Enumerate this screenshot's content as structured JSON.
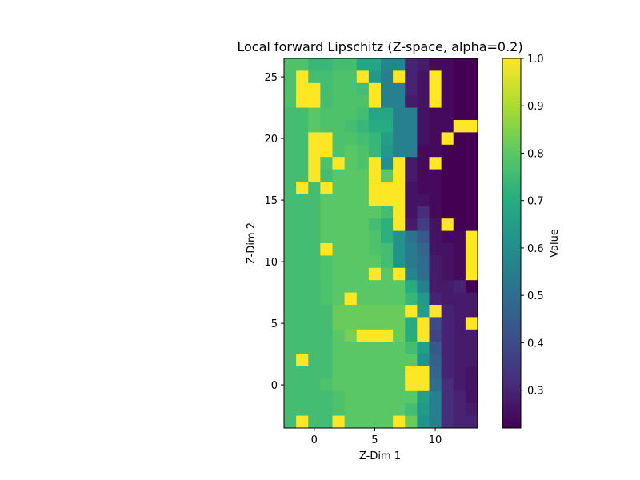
{
  "chart_data": {
    "type": "heatmap",
    "title": "Local forward Lipschitz (Z-space, alpha=0.2)",
    "xlabel": "Z-Dim 1",
    "ylabel": "Z-Dim 2",
    "colorbar_label": "Value",
    "colormap": "viridis",
    "x_start": -2,
    "x_end": 13,
    "y_start": -3,
    "y_end": 26,
    "xlim": [
      -2.5,
      13.5
    ],
    "ylim": [
      -3.5,
      26.5
    ],
    "x_ticks": [
      0,
      5,
      10
    ],
    "y_ticks": [
      0,
      5,
      10,
      15,
      20,
      25
    ],
    "clim": [
      0.22,
      1.0
    ],
    "colorbar_ticks": [
      0.3,
      0.4,
      0.5,
      0.6,
      0.7,
      0.8,
      0.9,
      1.0
    ],
    "colorbar_tick_labels": [
      "0.3",
      "0.4",
      "0.5",
      "0.6",
      "0.7",
      "0.8",
      "0.9",
      "1.0"
    ],
    "rows": [
      [
        0.78,
        0.78,
        0.74,
        0.74,
        0.76,
        0.76,
        0.68,
        0.68,
        0.58,
        0.58,
        0.3,
        0.28,
        0.24,
        0.24,
        0.22,
        0.22
      ],
      [
        0.78,
        1.0,
        0.76,
        0.76,
        0.78,
        0.78,
        1.0,
        0.64,
        0.56,
        1.0,
        0.3,
        0.26,
        1.0,
        0.24,
        0.22,
        0.22
      ],
      [
        0.78,
        1.0,
        1.0,
        0.76,
        0.78,
        0.78,
        0.76,
        1.0,
        0.56,
        0.56,
        0.3,
        0.26,
        1.0,
        0.24,
        0.22,
        0.22
      ],
      [
        0.78,
        1.0,
        1.0,
        0.76,
        0.78,
        0.78,
        0.78,
        1.0,
        0.56,
        0.56,
        0.28,
        0.26,
        1.0,
        0.24,
        0.22,
        0.22
      ],
      [
        0.76,
        0.76,
        0.8,
        0.78,
        0.78,
        0.78,
        0.76,
        0.68,
        0.68,
        0.56,
        0.56,
        0.26,
        0.24,
        0.24,
        0.22,
        0.22
      ],
      [
        0.76,
        0.76,
        0.8,
        0.78,
        0.78,
        0.76,
        0.74,
        0.7,
        0.7,
        0.56,
        0.56,
        0.26,
        0.24,
        0.24,
        1.0,
        1.0
      ],
      [
        0.76,
        0.76,
        1.0,
        1.0,
        0.78,
        0.78,
        0.76,
        0.74,
        0.66,
        0.56,
        0.56,
        0.26,
        0.24,
        1.0,
        0.22,
        0.22
      ],
      [
        0.76,
        0.76,
        1.0,
        1.0,
        0.78,
        0.8,
        0.78,
        0.74,
        0.64,
        0.56,
        0.56,
        0.24,
        0.24,
        0.22,
        0.22,
        0.22
      ],
      [
        0.76,
        0.76,
        1.0,
        0.78,
        1.0,
        0.8,
        0.78,
        1.0,
        0.62,
        1.0,
        0.28,
        0.24,
        1.0,
        0.22,
        0.22,
        0.22
      ],
      [
        0.76,
        0.76,
        1.0,
        0.76,
        0.8,
        0.8,
        0.8,
        1.0,
        0.8,
        1.0,
        0.28,
        0.24,
        0.24,
        0.22,
        0.22,
        0.22
      ],
      [
        0.76,
        1.0,
        0.76,
        1.0,
        0.8,
        0.8,
        0.8,
        1.0,
        1.0,
        1.0,
        0.26,
        0.24,
        0.24,
        0.22,
        0.22,
        0.22
      ],
      [
        0.76,
        0.76,
        0.76,
        0.8,
        0.8,
        0.8,
        0.8,
        1.0,
        1.0,
        1.0,
        0.26,
        0.26,
        0.24,
        0.22,
        0.22,
        0.22
      ],
      [
        0.76,
        0.76,
        0.76,
        0.8,
        0.8,
        0.8,
        0.8,
        0.8,
        0.76,
        1.0,
        0.26,
        0.32,
        0.24,
        0.22,
        0.22,
        0.22
      ],
      [
        0.76,
        0.76,
        0.76,
        0.8,
        0.8,
        0.8,
        0.8,
        0.76,
        0.72,
        1.0,
        0.28,
        0.36,
        0.26,
        1.0,
        0.22,
        0.22
      ],
      [
        0.76,
        0.76,
        0.76,
        0.8,
        0.8,
        0.8,
        0.8,
        0.78,
        0.72,
        0.62,
        0.52,
        0.44,
        0.26,
        0.24,
        0.24,
        1.0
      ],
      [
        0.76,
        0.76,
        0.76,
        1.0,
        0.8,
        0.8,
        0.8,
        0.78,
        0.76,
        0.62,
        0.54,
        0.48,
        0.26,
        0.26,
        0.24,
        1.0
      ],
      [
        0.76,
        0.76,
        0.76,
        0.78,
        0.8,
        0.8,
        0.8,
        0.8,
        0.76,
        0.62,
        0.54,
        0.5,
        0.28,
        0.26,
        0.24,
        1.0
      ],
      [
        0.76,
        0.76,
        0.76,
        0.78,
        0.8,
        0.8,
        0.8,
        1.0,
        0.8,
        1.0,
        0.58,
        0.5,
        0.28,
        0.26,
        0.24,
        1.0
      ],
      [
        0.76,
        0.76,
        0.76,
        0.78,
        0.8,
        0.8,
        0.8,
        0.8,
        0.8,
        0.8,
        0.7,
        0.56,
        0.28,
        0.28,
        0.3,
        0.22
      ],
      [
        0.76,
        0.76,
        0.76,
        0.78,
        0.8,
        1.0,
        0.8,
        0.8,
        0.8,
        0.8,
        0.74,
        0.64,
        0.3,
        0.28,
        0.28,
        0.28
      ],
      [
        0.76,
        0.76,
        0.76,
        0.76,
        0.82,
        0.82,
        0.82,
        0.82,
        0.82,
        0.82,
        1.0,
        0.66,
        1.0,
        0.3,
        0.28,
        0.28
      ],
      [
        0.76,
        0.76,
        0.76,
        0.76,
        0.82,
        0.82,
        0.82,
        0.82,
        0.82,
        0.82,
        0.7,
        1.0,
        0.4,
        0.3,
        0.28,
        1.0
      ],
      [
        0.76,
        0.76,
        0.76,
        0.76,
        0.8,
        0.84,
        1.0,
        1.0,
        1.0,
        0.82,
        0.7,
        1.0,
        0.38,
        0.3,
        0.28,
        0.28
      ],
      [
        0.76,
        0.76,
        0.76,
        0.76,
        0.8,
        0.8,
        0.8,
        0.8,
        0.8,
        0.8,
        0.76,
        0.66,
        0.44,
        0.3,
        0.28,
        0.28
      ],
      [
        0.76,
        1.0,
        0.76,
        0.76,
        0.8,
        0.8,
        0.8,
        0.8,
        0.8,
        0.8,
        0.8,
        0.62,
        0.46,
        0.3,
        0.28,
        0.28
      ],
      [
        0.76,
        0.76,
        0.76,
        0.76,
        0.8,
        0.8,
        0.8,
        0.8,
        0.8,
        0.8,
        1.0,
        1.0,
        0.48,
        0.3,
        0.28,
        0.26
      ],
      [
        0.76,
        0.76,
        0.76,
        0.78,
        0.8,
        0.8,
        0.8,
        0.8,
        0.8,
        0.8,
        1.0,
        1.0,
        0.5,
        0.32,
        0.28,
        0.26
      ],
      [
        0.76,
        0.76,
        0.76,
        0.76,
        0.78,
        0.8,
        0.8,
        0.8,
        0.8,
        0.8,
        0.8,
        0.66,
        0.56,
        0.32,
        0.3,
        0.26
      ],
      [
        0.76,
        0.76,
        0.76,
        0.76,
        0.78,
        0.8,
        0.8,
        0.8,
        0.8,
        0.8,
        0.76,
        0.64,
        0.56,
        0.32,
        0.3,
        0.28
      ],
      [
        0.76,
        1.0,
        0.76,
        0.76,
        1.0,
        0.8,
        0.8,
        0.8,
        0.8,
        1.0,
        0.82,
        0.62,
        0.56,
        0.32,
        0.3,
        0.3
      ]
    ]
  }
}
